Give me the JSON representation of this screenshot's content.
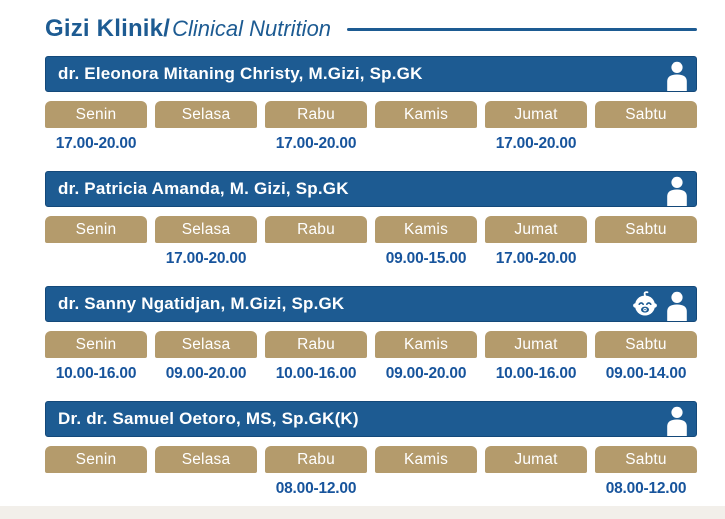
{
  "title": {
    "bold": "Gizi Klinik/",
    "light": "Clinical Nutrition"
  },
  "colors": {
    "header_blue": "#1d5b92",
    "day_tan": "#b49b6c",
    "time_blue": "#17549c",
    "bottom_band": "#f2efea"
  },
  "days": [
    "Senin",
    "Selasa",
    "Rabu",
    "Kamis",
    "Jumat",
    "Sabtu"
  ],
  "doctors": [
    {
      "name": "dr. Eleonora Mitaning Christy, M.Gizi, Sp.GK",
      "icons": [
        "person"
      ],
      "times": [
        "17.00-20.00",
        "",
        "17.00-20.00",
        "",
        "17.00-20.00",
        ""
      ]
    },
    {
      "name": "dr. Patricia Amanda, M. Gizi, Sp.GK",
      "icons": [
        "person"
      ],
      "times": [
        "",
        "17.00-20.00",
        "",
        "09.00-15.00",
        "17.00-20.00",
        ""
      ]
    },
    {
      "name": "dr. Sanny Ngatidjan, M.Gizi, Sp.GK",
      "icons": [
        "baby",
        "person"
      ],
      "times": [
        "10.00-16.00",
        "09.00-20.00",
        "10.00-16.00",
        "09.00-20.00",
        "10.00-16.00",
        "09.00-14.00"
      ]
    },
    {
      "name": "Dr. dr. Samuel Oetoro, MS, Sp.GK(K)",
      "icons": [
        "person"
      ],
      "times": [
        "",
        "",
        "08.00-12.00",
        "",
        "",
        "08.00-12.00"
      ]
    }
  ]
}
